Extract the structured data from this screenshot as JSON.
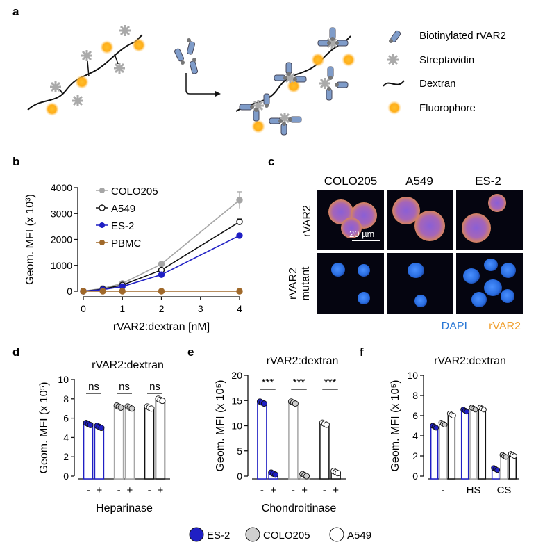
{
  "panels": {
    "a": "a",
    "b": "b",
    "c": "c",
    "d": "d",
    "e": "e",
    "f": "f"
  },
  "panel_a": {
    "legend": [
      "Biotinylated rVAR2",
      "Streptavidin",
      "Dextran",
      "Fluorophore"
    ]
  },
  "panel_c": {
    "col_labels": [
      "COLO205",
      "A549",
      "ES-2"
    ],
    "row_labels": [
      "rVAR2",
      "rVAR2 mutant"
    ],
    "scalebar": "20 µm",
    "stain_dapi": "DAPI",
    "stain_rvar2": "rVAR2",
    "dapi_color": "#2a78d6",
    "rvar2_color": "#f0a030"
  },
  "colors": {
    "es2": "#1f1fc4",
    "colo205": "#a6a6a6",
    "a549": "#111111",
    "pbmc": "#a0692a"
  },
  "chart_data": [
    {
      "id": "b",
      "type": "line",
      "xlabel": "rVAR2:dextran [nM]",
      "ylabel": "Geom. MFI (x 10³)",
      "ylim": [
        0,
        4000
      ],
      "xlim": [
        0,
        4
      ],
      "xticks": [
        "0",
        "1",
        "2",
        "3",
        "4"
      ],
      "yticks": [
        "0",
        "1000",
        "2000",
        "3000",
        "4000"
      ],
      "x": [
        0,
        0.5,
        1,
        2,
        4
      ],
      "series": [
        {
          "name": "COLO205",
          "values": [
            0,
            110,
            300,
            1050,
            3520
          ],
          "err": [
            0,
            20,
            30,
            60,
            320
          ]
        },
        {
          "name": "A549",
          "values": [
            0,
            80,
            240,
            820,
            2680
          ],
          "err": [
            0,
            15,
            25,
            50,
            110
          ]
        },
        {
          "name": "ES-2",
          "values": [
            0,
            60,
            180,
            640,
            2150
          ],
          "err": [
            0,
            15,
            20,
            40,
            80
          ]
        },
        {
          "name": "PBMC",
          "values": [
            0,
            0,
            0,
            0,
            0
          ],
          "err": [
            0,
            0,
            0,
            0,
            0
          ]
        }
      ]
    },
    {
      "id": "d",
      "type": "bar",
      "title": "rVAR2:dextran",
      "ylabel": "Geom. MFI (x 10⁵)",
      "xlabel": "Heparinase",
      "ylim": [
        0,
        10
      ],
      "yticks": [
        "0",
        "2",
        "4",
        "6",
        "8",
        "10"
      ],
      "treatment_labels": [
        "-",
        "+",
        "-",
        "+",
        "-",
        "+"
      ],
      "significance": [
        "ns",
        "ns",
        "ns"
      ],
      "series": [
        {
          "name": "ES-2",
          "values": [
            5.4,
            5.1
          ]
        },
        {
          "name": "COLO205",
          "values": [
            7.2,
            7.1
          ]
        },
        {
          "name": "A549",
          "values": [
            7.1,
            7.9
          ]
        }
      ]
    },
    {
      "id": "e",
      "type": "bar",
      "title": "rVAR2:dextran",
      "ylabel": "Geom. MFI (x 10⁵)",
      "xlabel": "Chondroitinase",
      "ylim": [
        0,
        20
      ],
      "yticks": [
        "0",
        "5",
        "10",
        "15",
        "20"
      ],
      "treatment_labels": [
        "-",
        "+",
        "-",
        "+",
        "-",
        "+"
      ],
      "significance": [
        "***",
        "***",
        "***"
      ],
      "series": [
        {
          "name": "ES-2",
          "values": [
            14.6,
            0.5
          ]
        },
        {
          "name": "COLO205",
          "values": [
            14.6,
            0.2
          ]
        },
        {
          "name": "A549",
          "values": [
            10.4,
            0.8
          ]
        }
      ]
    },
    {
      "id": "f",
      "type": "bar",
      "title": "rVAR2:dextran",
      "ylabel": "Geom. MFI (x 10⁵)",
      "ylim": [
        0,
        10
      ],
      "yticks": [
        "0",
        "2",
        "4",
        "6",
        "8",
        "10"
      ],
      "categories": [
        "-",
        "HS",
        "CS"
      ],
      "series": [
        {
          "name": "ES-2",
          "values": [
            4.9,
            6.5,
            0.7
          ]
        },
        {
          "name": "COLO205",
          "values": [
            5.2,
            6.7,
            2.0
          ]
        },
        {
          "name": "A549",
          "values": [
            6.1,
            6.7,
            2.1
          ]
        }
      ]
    }
  ],
  "bottom_legend": [
    "ES-2",
    "COLO205",
    "A549"
  ]
}
